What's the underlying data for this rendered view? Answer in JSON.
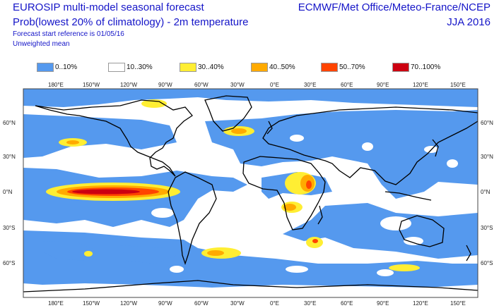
{
  "header": {
    "title_line1": "EUROSIP multi-model seasonal forecast",
    "title_line2": "Prob(lowest 20% of climatology) - 2m temperature",
    "start_ref": "Forecast start reference is 01/05/16",
    "weighting": "Unweighted mean",
    "centres": "ECMWF/Met Office/Meteo-France/NCEP",
    "season": "JJA 2016"
  },
  "legend": [
    {
      "label": "0..10%",
      "color": "#5599ee"
    },
    {
      "label": "10..30%",
      "color": "#ffffff"
    },
    {
      "label": "30..40%",
      "color": "#ffee33"
    },
    {
      "label": "40..50%",
      "color": "#ffaa00"
    },
    {
      "label": "50..70%",
      "color": "#ff4400"
    },
    {
      "label": "70..100%",
      "color": "#cc0011"
    }
  ],
  "lon_labels": [
    "180°E",
    "150°W",
    "120°W",
    "90°W",
    "60°W",
    "30°W",
    "0°E",
    "30°E",
    "60°E",
    "90°E",
    "120°E",
    "150°E"
  ],
  "lat_labels": [
    "60°N",
    "30°N",
    "0°N",
    "30°S",
    "60°S"
  ]
}
